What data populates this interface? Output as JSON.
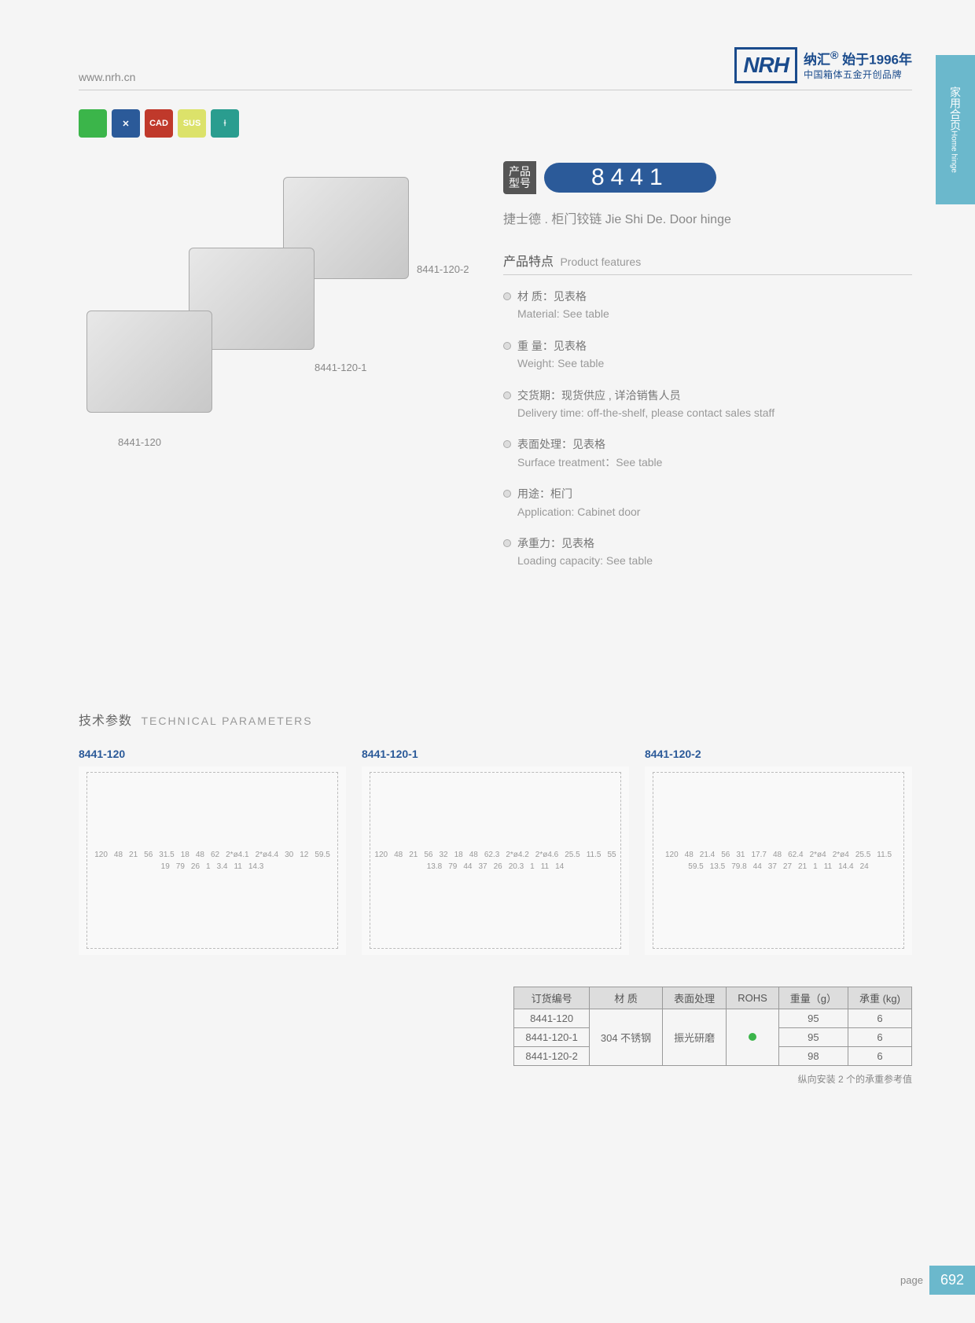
{
  "header": {
    "url": "www.nrh.cn",
    "logo_text": "NRH",
    "brand_cn": "纳汇",
    "brand_year_prefix": "始于",
    "brand_year": "1996年",
    "brand_sub": "中国箱体五金开创品牌",
    "reg_mark": "®"
  },
  "side_tab": {
    "cn": "家用合页",
    "en": "Home hinge"
  },
  "icons": [
    {
      "bg": "#3bb54a",
      "label": ""
    },
    {
      "bg": "#2b5a99",
      "label": "✕"
    },
    {
      "bg": "#c0392b",
      "label": "CAD"
    },
    {
      "bg": "#dce26a",
      "label": "SUS"
    },
    {
      "bg": "#2a9d8f",
      "label": "⟊"
    }
  ],
  "product": {
    "model_label_l1": "产品",
    "model_label_l2": "型号",
    "model_number": "8441",
    "subtitle": "捷士德 . 柜门铰链   Jie Shi De. Door hinge",
    "img_labels": [
      "8441-120",
      "8441-120-1",
      "8441-120-2"
    ]
  },
  "features": {
    "title_cn": "产品特点",
    "title_en": "Product features",
    "items": [
      {
        "cn": "材  质：见表格",
        "en": "Material: See table"
      },
      {
        "cn": "重  量：见表格",
        "en": "Weight: See table"
      },
      {
        "cn": "交货期：现货供应 , 详洽销售人员",
        "en": "Delivery time: off-the-shelf, please contact sales staff"
      },
      {
        "cn": "表面处理：见表格",
        "en": "Surface treatment：See table"
      },
      {
        "cn": "用途：柜门",
        "en": "Application: Cabinet door"
      },
      {
        "cn": "承重力：见表格",
        "en": "Loading capacity: See table"
      }
    ]
  },
  "technical": {
    "title_cn": "技术参数",
    "title_en": "TECHNICAL PARAMETERS",
    "drawings": [
      {
        "label": "8441-120",
        "dims": [
          "120",
          "48",
          "21",
          "56",
          "31.5",
          "18",
          "48",
          "62",
          "2*ø4.1",
          "2*ø4.4",
          "30",
          "12",
          "59.5",
          "19",
          "79",
          "26",
          "1",
          "3.4",
          "11",
          "14.3"
        ]
      },
      {
        "label": "8441-120-1",
        "dims": [
          "120",
          "48",
          "21",
          "56",
          "32",
          "18",
          "48",
          "62.3",
          "2*ø4.2",
          "2*ø4.6",
          "25.5",
          "11.5",
          "55",
          "13.8",
          "79",
          "44",
          "37",
          "26",
          "20.3",
          "1",
          "11",
          "14"
        ]
      },
      {
        "label": "8441-120-2",
        "dims": [
          "120",
          "48",
          "21.4",
          "56",
          "31",
          "17.7",
          "48",
          "62.4",
          "2*ø4",
          "2*ø4",
          "25.5",
          "11.5",
          "59.5",
          "13.5",
          "79.8",
          "44",
          "37",
          "27",
          "21",
          "1",
          "11",
          "14.4",
          "24"
        ]
      }
    ]
  },
  "table": {
    "headers": [
      "订货编号",
      "材    质",
      "表面处理",
      "ROHS",
      "重量（g）",
      "承重 (kg)"
    ],
    "rows": [
      {
        "code": "8441-120",
        "weight": "95",
        "load": "6"
      },
      {
        "code": "8441-120-1",
        "weight": "95",
        "load": "6"
      },
      {
        "code": "8441-120-2",
        "weight": "98",
        "load": "6"
      }
    ],
    "material": "304 不锈钢",
    "surface": "振光研磨",
    "note": "纵向安装 2 个的承重参考值"
  },
  "footer": {
    "page_label": "page",
    "page_num": "692"
  },
  "colors": {
    "brand_blue": "#1a4b8c",
    "model_blue": "#2b5a99",
    "tab_teal": "#6bb8cc",
    "rohs_green": "#3bb54a"
  }
}
